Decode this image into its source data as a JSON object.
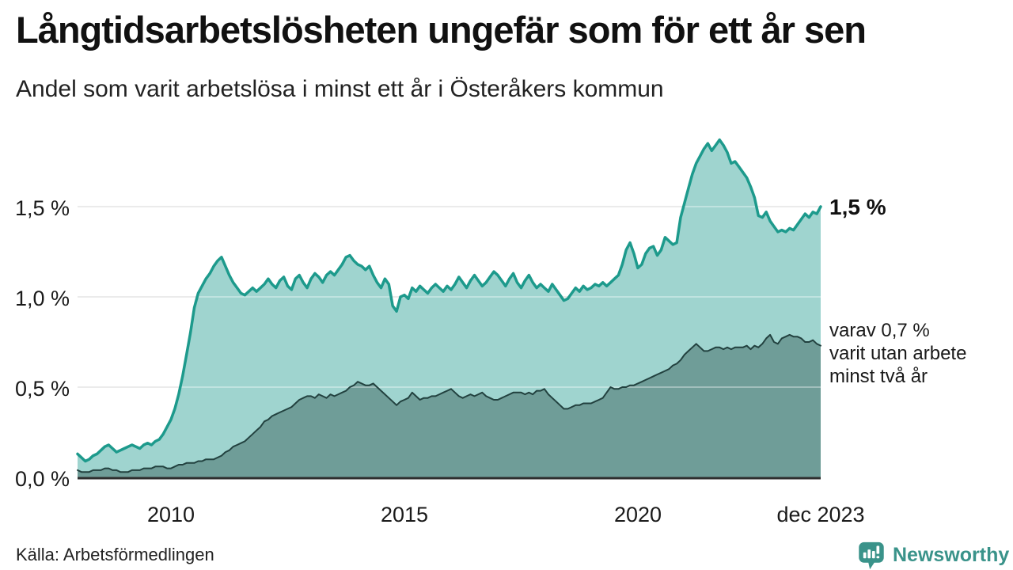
{
  "title": "Långtidsarbetslösheten ungefär som för ett år sen",
  "subtitle": "Andel som varit arbetslösa i minst ett år i Österåkers kommun",
  "annotations": {
    "latest_value": "1,5 %",
    "secondary_line1": "varav 0,7 %",
    "secondary_line2": "varit utan arbete",
    "secondary_line3": "minst två år"
  },
  "source": "Källa: Arbetsförmedlingen",
  "logo": {
    "label": "Newsworthy",
    "color": "#3a938a"
  },
  "colors": {
    "upper_line": "#1d9a8c",
    "upper_fill": "#9fd4cf",
    "lower_line": "#22413f",
    "lower_fill": "#6f9d98",
    "gridline": "#e0e0e0",
    "gridline_overlay": "rgba(255,255,255,0.35)",
    "axis_baseline": "#2e2e2e"
  },
  "chart_data": {
    "type": "area",
    "title": "Långtidsarbetslösheten ungefär som för ett år sen",
    "subtitle": "Andel som varit arbetslösa i minst ett år i Österåkers kommun",
    "x_start": "2008-01",
    "x_end": "2023-12",
    "x_frequency": "monthly",
    "ylabel": "",
    "ylim": [
      0,
      2.0
    ],
    "grid": "horizontal",
    "yticks": [
      {
        "label": "0,0 %",
        "value": 0.0
      },
      {
        "label": "0,5 %",
        "value": 0.5
      },
      {
        "label": "1,0 %",
        "value": 1.0
      },
      {
        "label": "1,5 %",
        "value": 1.5
      }
    ],
    "xticks": [
      {
        "label": "2010",
        "month_index": 24
      },
      {
        "label": "2015",
        "month_index": 84
      },
      {
        "label": "2020",
        "month_index": 144
      },
      {
        "label": "dec 2023",
        "month_index": 191
      }
    ],
    "series": [
      {
        "name": "Arbetslösa minst ett år",
        "end_label": "1,5 %",
        "end_value": 1.5,
        "values": [
          0.13,
          0.11,
          0.09,
          0.1,
          0.12,
          0.13,
          0.15,
          0.17,
          0.18,
          0.16,
          0.14,
          0.15,
          0.16,
          0.17,
          0.18,
          0.17,
          0.16,
          0.18,
          0.19,
          0.18,
          0.2,
          0.21,
          0.24,
          0.28,
          0.32,
          0.38,
          0.46,
          0.56,
          0.68,
          0.8,
          0.94,
          1.02,
          1.06,
          1.1,
          1.13,
          1.17,
          1.2,
          1.22,
          1.17,
          1.12,
          1.08,
          1.05,
          1.02,
          1.01,
          1.03,
          1.05,
          1.03,
          1.05,
          1.07,
          1.1,
          1.07,
          1.05,
          1.09,
          1.11,
          1.06,
          1.04,
          1.1,
          1.12,
          1.08,
          1.05,
          1.1,
          1.13,
          1.11,
          1.08,
          1.12,
          1.14,
          1.12,
          1.15,
          1.18,
          1.22,
          1.23,
          1.2,
          1.18,
          1.17,
          1.15,
          1.17,
          1.12,
          1.08,
          1.05,
          1.1,
          1.07,
          0.95,
          0.92,
          1.0,
          1.01,
          0.99,
          1.05,
          1.03,
          1.06,
          1.04,
          1.02,
          1.05,
          1.07,
          1.05,
          1.03,
          1.06,
          1.04,
          1.07,
          1.11,
          1.08,
          1.05,
          1.09,
          1.12,
          1.09,
          1.06,
          1.08,
          1.11,
          1.14,
          1.12,
          1.09,
          1.06,
          1.1,
          1.13,
          1.08,
          1.05,
          1.09,
          1.12,
          1.08,
          1.05,
          1.07,
          1.05,
          1.03,
          1.07,
          1.04,
          1.01,
          0.98,
          0.99,
          1.02,
          1.05,
          1.03,
          1.06,
          1.04,
          1.05,
          1.07,
          1.06,
          1.08,
          1.06,
          1.08,
          1.1,
          1.12,
          1.18,
          1.26,
          1.3,
          1.24,
          1.16,
          1.18,
          1.24,
          1.27,
          1.28,
          1.23,
          1.26,
          1.33,
          1.31,
          1.29,
          1.3,
          1.44,
          1.52,
          1.6,
          1.68,
          1.74,
          1.78,
          1.82,
          1.85,
          1.81,
          1.84,
          1.87,
          1.84,
          1.8,
          1.74,
          1.75,
          1.72,
          1.69,
          1.66,
          1.61,
          1.55,
          1.45,
          1.44,
          1.47,
          1.42,
          1.39,
          1.36,
          1.37,
          1.36,
          1.38,
          1.37,
          1.4,
          1.43,
          1.46,
          1.44,
          1.47,
          1.46,
          1.5
        ]
      },
      {
        "name": "varav utan arbete minst två år",
        "end_label": "0,7 %",
        "end_value": 0.73,
        "values": [
          0.04,
          0.03,
          0.03,
          0.03,
          0.04,
          0.04,
          0.04,
          0.05,
          0.05,
          0.04,
          0.04,
          0.03,
          0.03,
          0.03,
          0.04,
          0.04,
          0.04,
          0.05,
          0.05,
          0.05,
          0.06,
          0.06,
          0.06,
          0.05,
          0.05,
          0.06,
          0.07,
          0.07,
          0.08,
          0.08,
          0.08,
          0.09,
          0.09,
          0.1,
          0.1,
          0.1,
          0.11,
          0.12,
          0.14,
          0.15,
          0.17,
          0.18,
          0.19,
          0.2,
          0.22,
          0.24,
          0.26,
          0.28,
          0.31,
          0.32,
          0.34,
          0.35,
          0.36,
          0.37,
          0.38,
          0.39,
          0.41,
          0.43,
          0.44,
          0.45,
          0.45,
          0.44,
          0.46,
          0.45,
          0.44,
          0.46,
          0.45,
          0.46,
          0.47,
          0.48,
          0.5,
          0.51,
          0.53,
          0.52,
          0.51,
          0.51,
          0.52,
          0.5,
          0.48,
          0.46,
          0.44,
          0.42,
          0.4,
          0.42,
          0.43,
          0.44,
          0.47,
          0.45,
          0.43,
          0.44,
          0.44,
          0.45,
          0.45,
          0.46,
          0.47,
          0.48,
          0.49,
          0.47,
          0.45,
          0.44,
          0.45,
          0.46,
          0.45,
          0.46,
          0.47,
          0.45,
          0.44,
          0.43,
          0.43,
          0.44,
          0.45,
          0.46,
          0.47,
          0.47,
          0.47,
          0.46,
          0.47,
          0.46,
          0.48,
          0.48,
          0.49,
          0.46,
          0.44,
          0.42,
          0.4,
          0.38,
          0.38,
          0.39,
          0.4,
          0.4,
          0.41,
          0.41,
          0.41,
          0.42,
          0.43,
          0.44,
          0.47,
          0.5,
          0.49,
          0.49,
          0.5,
          0.5,
          0.51,
          0.51,
          0.52,
          0.53,
          0.54,
          0.55,
          0.56,
          0.57,
          0.58,
          0.59,
          0.6,
          0.62,
          0.63,
          0.65,
          0.68,
          0.7,
          0.72,
          0.74,
          0.72,
          0.7,
          0.7,
          0.71,
          0.72,
          0.72,
          0.71,
          0.72,
          0.71,
          0.72,
          0.72,
          0.72,
          0.73,
          0.71,
          0.73,
          0.72,
          0.74,
          0.77,
          0.79,
          0.75,
          0.74,
          0.77,
          0.78,
          0.79,
          0.78,
          0.78,
          0.77,
          0.75,
          0.75,
          0.76,
          0.74,
          0.73
        ]
      }
    ]
  }
}
